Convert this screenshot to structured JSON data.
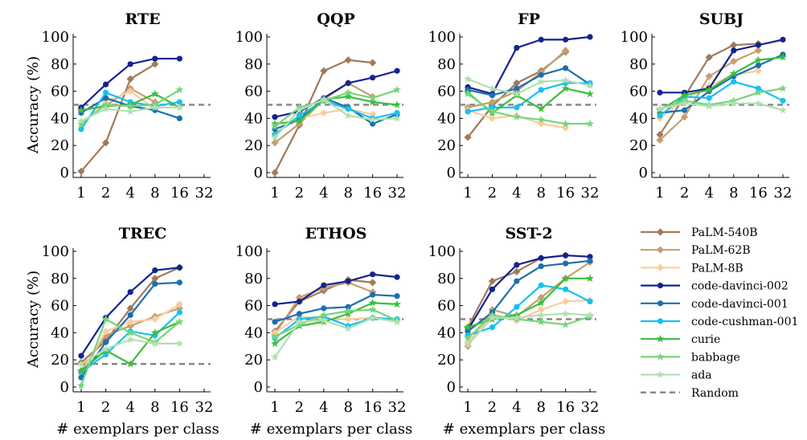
{
  "series_styles": [
    {
      "name": "PaLM-540B",
      "color": "#a07a5b",
      "marker": "diamond"
    },
    {
      "name": "PaLM-62B",
      "color": "#c59f70",
      "marker": "diamond"
    },
    {
      "name": "PaLM-8B",
      "color": "#fbcd9e",
      "marker": "diamond"
    },
    {
      "name": "code-davinci-002",
      "color": "#14238f",
      "marker": "circle"
    },
    {
      "name": "code-davinci-001",
      "color": "#1c6fae",
      "marker": "circle"
    },
    {
      "name": "code-cushman-001",
      "color": "#17c0f2",
      "marker": "circle"
    },
    {
      "name": "curie",
      "color": "#3abf3a",
      "marker": "star"
    },
    {
      "name": "babbage",
      "color": "#77d47b",
      "marker": "star"
    },
    {
      "name": "ada",
      "color": "#b2e0b1",
      "marker": "star"
    }
  ],
  "random_style": {
    "name": "Random",
    "color": "#888888"
  },
  "chart_data": [
    {
      "type": "line",
      "title": "RTE",
      "ylabel": "Accuracy (%)",
      "xlabel": "",
      "x": [
        1,
        2,
        4,
        8,
        16,
        32
      ],
      "x_scale": "log2",
      "ylim": [
        0,
        100
      ],
      "y_ticks": [
        0,
        20,
        40,
        60,
        80,
        100
      ],
      "random": 50,
      "series": [
        {
          "name": "PaLM-540B",
          "values": [
            1,
            22,
            69,
            80,
            null,
            null
          ]
        },
        {
          "name": "PaLM-62B",
          "values": [
            46,
            49,
            62,
            52,
            null,
            null
          ]
        },
        {
          "name": "PaLM-8B",
          "values": [
            36,
            52,
            60,
            47,
            null,
            null
          ]
        },
        {
          "name": "code-davinci-002",
          "values": [
            48,
            65,
            80,
            84,
            84,
            null
          ]
        },
        {
          "name": "code-davinci-001",
          "values": [
            44,
            55,
            49,
            46,
            40,
            null
          ]
        },
        {
          "name": "code-cushman-001",
          "values": [
            32,
            59,
            52,
            49,
            52,
            null
          ]
        },
        {
          "name": "curie",
          "values": [
            46,
            49,
            50,
            58,
            48,
            null
          ]
        },
        {
          "name": "babbage",
          "values": [
            36,
            50,
            49,
            50,
            61,
            null
          ]
        },
        {
          "name": "ada",
          "values": [
            38,
            47,
            45,
            48,
            48,
            null
          ]
        }
      ]
    },
    {
      "type": "line",
      "title": "QQP",
      "ylabel": "",
      "xlabel": "",
      "x": [
        1,
        2,
        4,
        8,
        16,
        32
      ],
      "x_scale": "log2",
      "ylim": [
        0,
        100
      ],
      "y_ticks": [
        0,
        20,
        40,
        60,
        80,
        100
      ],
      "random": 50,
      "series": [
        {
          "name": "PaLM-540B",
          "values": [
            0,
            35,
            75,
            83,
            81,
            null
          ]
        },
        {
          "name": "PaLM-62B",
          "values": [
            22,
            36,
            54,
            66,
            56,
            null
          ]
        },
        {
          "name": "PaLM-8B",
          "values": [
            29,
            40,
            44,
            47,
            43,
            null
          ]
        },
        {
          "name": "code-davinci-002",
          "values": [
            41,
            45,
            55,
            66,
            70,
            75
          ]
        },
        {
          "name": "code-davinci-001",
          "values": [
            32,
            39,
            55,
            48,
            36,
            43
          ]
        },
        {
          "name": "code-cushman-001",
          "values": [
            28,
            42,
            53,
            47,
            40,
            44
          ]
        },
        {
          "name": "curie",
          "values": [
            36,
            38,
            54,
            56,
            52,
            50
          ]
        },
        {
          "name": "babbage",
          "values": [
            34,
            48,
            53,
            59,
            55,
            61
          ]
        },
        {
          "name": "ada",
          "values": [
            26,
            46,
            54,
            42,
            39,
            40
          ]
        }
      ]
    },
    {
      "type": "line",
      "title": "FP",
      "ylabel": "",
      "xlabel": "",
      "x": [
        1,
        2,
        4,
        8,
        16,
        32
      ],
      "x_scale": "log2",
      "ylim": [
        0,
        100
      ],
      "y_ticks": [
        0,
        20,
        40,
        60,
        80,
        100
      ],
      "random": 50,
      "series": [
        {
          "name": "PaLM-540B",
          "values": [
            26,
            49,
            66,
            75,
            89,
            null
          ]
        },
        {
          "name": "PaLM-62B",
          "values": [
            48,
            52,
            60,
            74,
            90,
            null
          ]
        },
        {
          "name": "PaLM-8B",
          "values": [
            46,
            40,
            42,
            36,
            33,
            null
          ]
        },
        {
          "name": "code-davinci-002",
          "values": [
            63,
            58,
            92,
            98,
            98,
            100
          ]
        },
        {
          "name": "code-davinci-001",
          "values": [
            61,
            57,
            62,
            72,
            77,
            65
          ]
        },
        {
          "name": "code-cushman-001",
          "values": [
            45,
            48,
            48,
            61,
            66,
            66
          ]
        },
        {
          "name": "curie",
          "values": [
            59,
            44,
            57,
            47,
            62,
            58
          ]
        },
        {
          "name": "babbage",
          "values": [
            58,
            45,
            41,
            39,
            36,
            36
          ]
        },
        {
          "name": "ada",
          "values": [
            69,
            62,
            58,
            67,
            68,
            64
          ]
        }
      ]
    },
    {
      "type": "line",
      "title": "SUBJ",
      "ylabel": "",
      "xlabel": "",
      "x": [
        1,
        2,
        4,
        8,
        16,
        32
      ],
      "x_scale": "log2",
      "ylim": [
        0,
        100
      ],
      "y_ticks": [
        0,
        20,
        40,
        60,
        80,
        100
      ],
      "random": 50,
      "series": [
        {
          "name": "PaLM-540B",
          "values": [
            28,
            56,
            85,
            94,
            95,
            null
          ]
        },
        {
          "name": "PaLM-62B",
          "values": [
            24,
            41,
            71,
            82,
            90,
            null
          ]
        },
        {
          "name": "PaLM-8B",
          "values": [
            40,
            54,
            64,
            72,
            75,
            null
          ]
        },
        {
          "name": "code-davinci-002",
          "values": [
            59,
            59,
            62,
            90,
            94,
            98
          ]
        },
        {
          "name": "code-davinci-001",
          "values": [
            44,
            46,
            60,
            71,
            79,
            87
          ]
        },
        {
          "name": "code-cushman-001",
          "values": [
            42,
            56,
            55,
            67,
            62,
            53
          ]
        },
        {
          "name": "curie",
          "values": [
            46,
            57,
            61,
            73,
            83,
            85
          ]
        },
        {
          "name": "babbage",
          "values": [
            47,
            53,
            50,
            53,
            59,
            62
          ]
        },
        {
          "name": "ada",
          "values": [
            47,
            51,
            49,
            51,
            51,
            46
          ]
        }
      ]
    },
    {
      "type": "line",
      "title": "TREC",
      "ylabel": "Accuracy (%)",
      "xlabel": "# exemplars per class",
      "x": [
        1,
        2,
        4,
        8,
        16,
        32
      ],
      "x_scale": "log2",
      "ylim": [
        0,
        100
      ],
      "y_ticks": [
        0,
        20,
        40,
        60,
        80,
        100
      ],
      "random": 17,
      "series": [
        {
          "name": "PaLM-540B",
          "values": [
            18,
            34,
            58,
            80,
            88,
            null
          ]
        },
        {
          "name": "PaLM-62B",
          "values": [
            12,
            38,
            45,
            52,
            58,
            null
          ]
        },
        {
          "name": "PaLM-8B",
          "values": [
            10,
            41,
            48,
            50,
            61,
            null
          ]
        },
        {
          "name": "code-davinci-002",
          "values": [
            23,
            51,
            70,
            86,
            88,
            null
          ]
        },
        {
          "name": "code-davinci-001",
          "values": [
            7,
            33,
            53,
            76,
            77,
            null
          ]
        },
        {
          "name": "code-cushman-001",
          "values": [
            11,
            24,
            41,
            38,
            55,
            null
          ]
        },
        {
          "name": "curie",
          "values": [
            12,
            27,
            17,
            40,
            48,
            null
          ]
        },
        {
          "name": "babbage",
          "values": [
            1,
            50,
            40,
            33,
            48,
            null
          ]
        },
        {
          "name": "ada",
          "values": [
            17,
            28,
            35,
            32,
            32,
            null
          ]
        }
      ]
    },
    {
      "type": "line",
      "title": "ETHOS",
      "ylabel": "",
      "xlabel": "# exemplars per class",
      "x": [
        1,
        2,
        4,
        8,
        16,
        32
      ],
      "x_scale": "log2",
      "ylim": [
        0,
        100
      ],
      "y_ticks": [
        0,
        20,
        40,
        60,
        80,
        100
      ],
      "random": 50,
      "series": [
        {
          "name": "PaLM-540B",
          "values": [
            41,
            63,
            71,
            79,
            77,
            null
          ]
        },
        {
          "name": "PaLM-62B",
          "values": [
            39,
            66,
            73,
            77,
            70,
            null
          ]
        },
        {
          "name": "PaLM-8B",
          "values": [
            40,
            52,
            50,
            50,
            51,
            null
          ]
        },
        {
          "name": "code-davinci-002",
          "values": [
            61,
            63,
            75,
            78,
            83,
            81
          ]
        },
        {
          "name": "code-davinci-001",
          "values": [
            48,
            54,
            58,
            59,
            68,
            67
          ]
        },
        {
          "name": "code-cushman-001",
          "values": [
            36,
            50,
            52,
            45,
            51,
            50
          ]
        },
        {
          "name": "curie",
          "values": [
            32,
            45,
            48,
            54,
            62,
            61
          ]
        },
        {
          "name": "babbage",
          "values": [
            37,
            46,
            53,
            56,
            57,
            49
          ]
        },
        {
          "name": "ada",
          "values": [
            22,
            48,
            49,
            43,
            51,
            48
          ]
        }
      ]
    },
    {
      "type": "line",
      "title": "SST-2",
      "ylabel": "",
      "xlabel": "# exemplars per class",
      "x": [
        1,
        2,
        4,
        8,
        16,
        32
      ],
      "x_scale": "log2",
      "ylim": [
        0,
        100
      ],
      "y_ticks": [
        0,
        20,
        40,
        60,
        80,
        100
      ],
      "random": 50,
      "series": [
        {
          "name": "PaLM-540B",
          "values": [
            44,
            78,
            85,
            95,
            97,
            null
          ]
        },
        {
          "name": "PaLM-62B",
          "values": [
            30,
            57,
            52,
            66,
            80,
            92
          ]
        },
        {
          "name": "PaLM-8B",
          "values": [
            33,
            53,
            49,
            57,
            63,
            64
          ]
        },
        {
          "name": "code-davinci-002",
          "values": [
            42,
            72,
            90,
            95,
            97,
            96
          ]
        },
        {
          "name": "code-davinci-001",
          "values": [
            41,
            55,
            78,
            89,
            91,
            93
          ]
        },
        {
          "name": "code-cushman-001",
          "values": [
            38,
            44,
            59,
            75,
            72,
            63
          ]
        },
        {
          "name": "curie",
          "values": [
            44,
            50,
            53,
            62,
            80,
            80
          ]
        },
        {
          "name": "babbage",
          "values": [
            36,
            53,
            50,
            48,
            46,
            52
          ]
        },
        {
          "name": "ada",
          "values": [
            31,
            51,
            51,
            53,
            54,
            53
          ]
        }
      ]
    }
  ]
}
